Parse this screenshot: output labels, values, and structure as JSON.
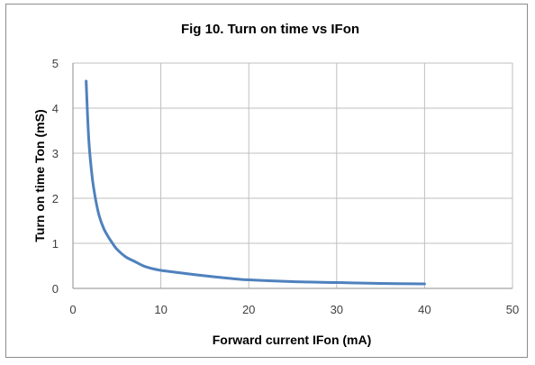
{
  "chart_data": {
    "type": "line",
    "title": "Fig 10. Turn on time vs IFon",
    "xlabel": "Forward current IFon (mA)",
    "ylabel": "Turn on time Ton (mS)",
    "xlim": [
      0,
      50
    ],
    "ylim": [
      0,
      5
    ],
    "x_ticks": [
      "0",
      "10",
      "20",
      "30",
      "40",
      "50"
    ],
    "y_ticks": [
      "0",
      "1",
      "2",
      "3",
      "4",
      "5"
    ],
    "grid": true,
    "legend": false,
    "series": [
      {
        "color": "#4f81bd",
        "x": [
          1.5,
          1.8,
          2.2,
          2.6,
          3.0,
          3.5,
          4.0,
          4.5,
          5.0,
          6.0,
          7.0,
          8.0,
          9.0,
          10.0,
          12.0,
          15.0,
          18.0,
          20.0,
          25.0,
          30.0,
          35.0,
          40.0
        ],
        "y": [
          4.6,
          3.3,
          2.45,
          1.95,
          1.6,
          1.33,
          1.15,
          1.0,
          0.87,
          0.7,
          0.6,
          0.5,
          0.44,
          0.4,
          0.35,
          0.28,
          0.22,
          0.19,
          0.15,
          0.13,
          0.11,
          0.1
        ]
      }
    ]
  }
}
